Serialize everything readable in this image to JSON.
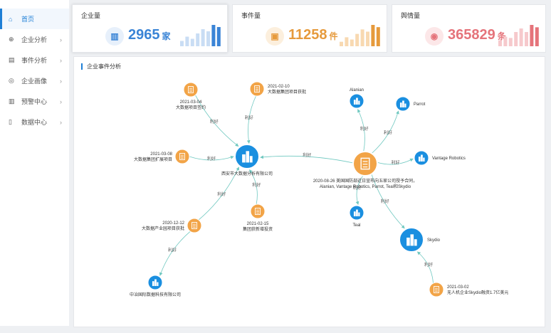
{
  "sidebar": {
    "items": [
      {
        "label": "首页",
        "icon": "home-icon",
        "glyph": "⌂",
        "active": true,
        "has_chevron": false
      },
      {
        "label": "企业分析",
        "icon": "globe-icon",
        "glyph": "⊕",
        "active": false,
        "has_chevron": true
      },
      {
        "label": "事件分析",
        "icon": "calendar-icon",
        "glyph": "▤",
        "active": false,
        "has_chevron": true
      },
      {
        "label": "企业画像",
        "icon": "target-icon",
        "glyph": "◎",
        "active": false,
        "has_chevron": true
      },
      {
        "label": "预警中心",
        "icon": "building-icon",
        "glyph": "▥",
        "active": false,
        "has_chevron": true
      },
      {
        "label": "数据中心",
        "icon": "document-icon",
        "glyph": "▯",
        "active": false,
        "has_chevron": true
      }
    ]
  },
  "cards": [
    {
      "title": "企业量",
      "value": "2965",
      "unit": "家",
      "color": "#3a84d6",
      "icon_bg": "#e7f0fb",
      "icon": "building-icon",
      "glyph": "▥",
      "bars": [
        5,
        9,
        7,
        12,
        16,
        14,
        20,
        18
      ],
      "bar_light": "#c9ddf4"
    },
    {
      "title": "事件量",
      "value": "11258",
      "unit": "件",
      "color": "#e69a3c",
      "icon_bg": "#fcefdd",
      "icon": "clipboard-icon",
      "glyph": "▣",
      "bars": [
        4,
        8,
        6,
        11,
        15,
        13,
        19,
        17
      ],
      "bar_light": "#f8d9b1"
    },
    {
      "title": "舆情量",
      "value": "365829",
      "unit": "条",
      "color": "#e5737a",
      "icon_bg": "#fce7e8",
      "icon": "target-icon",
      "glyph": "◉",
      "bars": [
        5,
        8,
        7,
        12,
        15,
        12,
        18,
        16
      ],
      "bar_light": "#f6c9cc"
    }
  ],
  "panel": {
    "title": "企业事件分析"
  },
  "graph": {
    "colors": {
      "company": "#1a8fe0",
      "event": "#f2a447",
      "edge": "#6fc8c0",
      "label": "#333333"
    },
    "nodes": [
      {
        "id": "n1",
        "type": "company",
        "label": "西安市大数据分析有限公司",
        "big": true
      },
      {
        "id": "n2",
        "type": "event",
        "label": "2021-02-10\n大数据集团项目获批",
        "big": false
      },
      {
        "id": "n3",
        "type": "event",
        "label": "2021-03-04\n大数据项目签约",
        "big": false
      },
      {
        "id": "n4",
        "type": "event",
        "label": "2021-03-08\n大数据集团扩展项目",
        "big": false
      },
      {
        "id": "n5",
        "type": "event",
        "label": "2021-02-15\n集团获新增投资",
        "big": false
      },
      {
        "id": "n6",
        "type": "event",
        "label": "2020-12-12\n大数据产业园项目获批",
        "big": false
      },
      {
        "id": "n7",
        "type": "company",
        "label": "中冶国际数据科技有限公司",
        "big": false
      },
      {
        "id": "n8",
        "type": "event",
        "label": "2020-08-26 美国国防部近日宣布向五家公司授予合同，\nAlanian, Vantage Robotics, Parrot, Teal和Skydio",
        "big": true
      },
      {
        "id": "n9",
        "type": "company",
        "label": "Alanian",
        "big": false
      },
      {
        "id": "n10",
        "type": "company",
        "label": "Parrot",
        "big": false
      },
      {
        "id": "n11",
        "type": "company",
        "label": "Vantage Robotics",
        "big": false
      },
      {
        "id": "n12",
        "type": "company",
        "label": "Teal",
        "big": false
      },
      {
        "id": "n13",
        "type": "company",
        "label": "Skydio",
        "big": true
      },
      {
        "id": "n14",
        "type": "event",
        "label": "2021-03-02\n无人机企业Skydio融资1.7亿美元",
        "big": false
      }
    ],
    "edges": [
      {
        "from": "n3",
        "to": "n1",
        "label": "利好"
      },
      {
        "from": "n2",
        "to": "n1",
        "label": "利好"
      },
      {
        "from": "n4",
        "to": "n1",
        "label": "利好"
      },
      {
        "from": "n5",
        "to": "n1",
        "label": "利好"
      },
      {
        "from": "n6",
        "to": "n1",
        "label": "利好"
      },
      {
        "from": "n8",
        "to": "n1",
        "label": "利好"
      },
      {
        "from": "n6",
        "to": "n7",
        "label": "利好"
      },
      {
        "from": "n8",
        "to": "n9",
        "label": "利好"
      },
      {
        "from": "n8",
        "to": "n10",
        "label": "利好"
      },
      {
        "from": "n8",
        "to": "n11",
        "label": "利好"
      },
      {
        "from": "n8",
        "to": "n12",
        "label": "利好"
      },
      {
        "from": "n8",
        "to": "n13",
        "label": "利好"
      },
      {
        "from": "n14",
        "to": "n13",
        "label": "利好"
      }
    ]
  }
}
